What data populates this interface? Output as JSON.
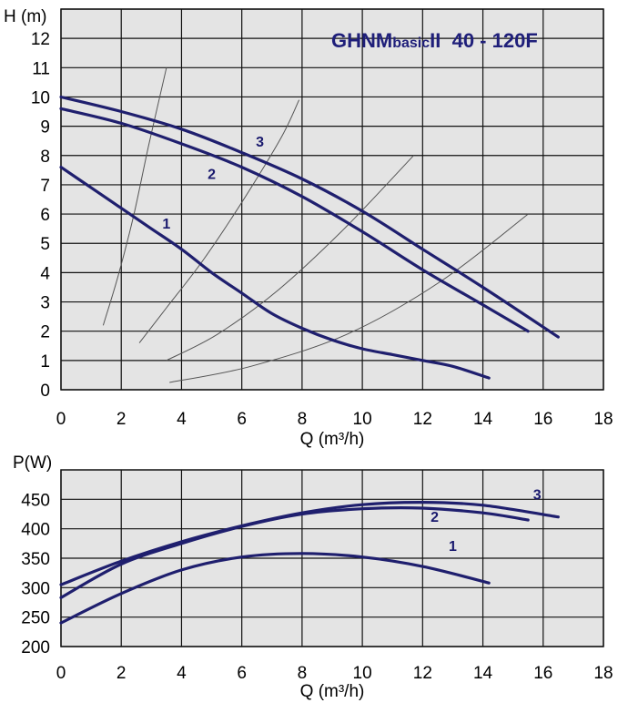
{
  "chart_data": [
    {
      "type": "line",
      "title": "GHNMbasicII 40 - 120F",
      "title_parts": {
        "main": "GHNM",
        "sub": "basic",
        "suffix": "II 40 - 120F"
      },
      "xlabel": "Q (m³/h)",
      "ylabel": "H (m)",
      "xlim": [
        0,
        18
      ],
      "ylim": [
        0,
        13
      ],
      "x_ticks": [
        "0",
        "2",
        "4",
        "6",
        "8",
        "10",
        "12",
        "14",
        "16",
        "18"
      ],
      "y_ticks": [
        "0",
        "1",
        "2",
        "3",
        "4",
        "5",
        "6",
        "7",
        "8",
        "9",
        "10",
        "11",
        "12"
      ],
      "grid": true,
      "background": "#e4e4e4",
      "series": [
        {
          "name": "1",
          "color": "#1f1f6e",
          "x": [
            0,
            1,
            2,
            3,
            4,
            5,
            6,
            7,
            8,
            9,
            10,
            11,
            12,
            13,
            14.2
          ],
          "y": [
            7.6,
            6.9,
            6.2,
            5.5,
            4.8,
            4.0,
            3.3,
            2.6,
            2.1,
            1.7,
            1.4,
            1.2,
            1.0,
            0.8,
            0.4
          ]
        },
        {
          "name": "2",
          "color": "#1f1f6e",
          "x": [
            0,
            2,
            4,
            6,
            8,
            10,
            12,
            14,
            15.5
          ],
          "y": [
            9.6,
            9.1,
            8.4,
            7.6,
            6.6,
            5.4,
            4.1,
            2.9,
            2.0
          ]
        },
        {
          "name": "3",
          "color": "#1f1f6e",
          "x": [
            0,
            2,
            4,
            6,
            8,
            10,
            12,
            14,
            16.5
          ],
          "y": [
            10.0,
            9.5,
            8.9,
            8.1,
            7.2,
            6.1,
            4.8,
            3.5,
            1.8
          ]
        }
      ],
      "system_curves": [
        {
          "color": "#555555",
          "x": [
            1.4,
            1.9,
            2.4,
            2.9,
            3.5
          ],
          "y": [
            2.2,
            3.9,
            5.9,
            8.3,
            11.0
          ]
        },
        {
          "color": "#555555",
          "x": [
            2.6,
            3.5,
            4.7,
            6.0,
            7.3,
            7.9
          ],
          "y": [
            1.6,
            2.8,
            4.4,
            6.4,
            8.6,
            9.9
          ]
        },
        {
          "color": "#555555",
          "x": [
            3.5,
            5.2,
            7.2,
            9.4,
            11.7
          ],
          "y": [
            1.0,
            1.9,
            3.4,
            5.5,
            8.0
          ]
        },
        {
          "color": "#555555",
          "x": [
            3.6,
            6.3,
            9.5,
            12.6,
            15.5
          ],
          "y": [
            0.25,
            0.8,
            1.9,
            3.7,
            6.0
          ]
        }
      ],
      "curve_labels": [
        {
          "text": "1",
          "x": 3.5,
          "y": 5.5
        },
        {
          "text": "2",
          "x": 5.0,
          "y": 7.2
        },
        {
          "text": "3",
          "x": 6.6,
          "y": 8.3
        }
      ]
    },
    {
      "type": "line",
      "title": "",
      "xlabel": "Q (m³/h)",
      "ylabel": "P(W)",
      "xlim": [
        0,
        18
      ],
      "ylim": [
        200,
        500
      ],
      "x_ticks": [
        "0",
        "2",
        "4",
        "6",
        "8",
        "10",
        "12",
        "14",
        "16",
        "18"
      ],
      "y_ticks": [
        "200",
        "250",
        "300",
        "350",
        "400",
        "450"
      ],
      "grid": true,
      "background": "#e4e4e4",
      "series": [
        {
          "name": "1",
          "color": "#1f1f6e",
          "x": [
            0,
            2,
            4,
            6,
            8,
            10,
            12,
            14.2
          ],
          "y": [
            240,
            290,
            330,
            352,
            358,
            352,
            336,
            308
          ]
        },
        {
          "name": "2",
          "color": "#1f1f6e",
          "x": [
            0,
            2,
            4,
            6,
            8,
            10,
            12,
            14,
            15.5
          ],
          "y": [
            283,
            340,
            375,
            404,
            425,
            434,
            435,
            427,
            415
          ]
        },
        {
          "name": "3",
          "color": "#1f1f6e",
          "x": [
            0,
            2,
            4,
            6,
            8,
            10,
            12,
            14,
            16.5
          ],
          "y": [
            305,
            345,
            378,
            405,
            427,
            441,
            445,
            440,
            420
          ]
        }
      ],
      "curve_labels": [
        {
          "text": "1",
          "x": 13.0,
          "y": 362
        },
        {
          "text": "2",
          "x": 12.4,
          "y": 412
        },
        {
          "text": "3",
          "x": 15.8,
          "y": 450
        }
      ]
    }
  ]
}
